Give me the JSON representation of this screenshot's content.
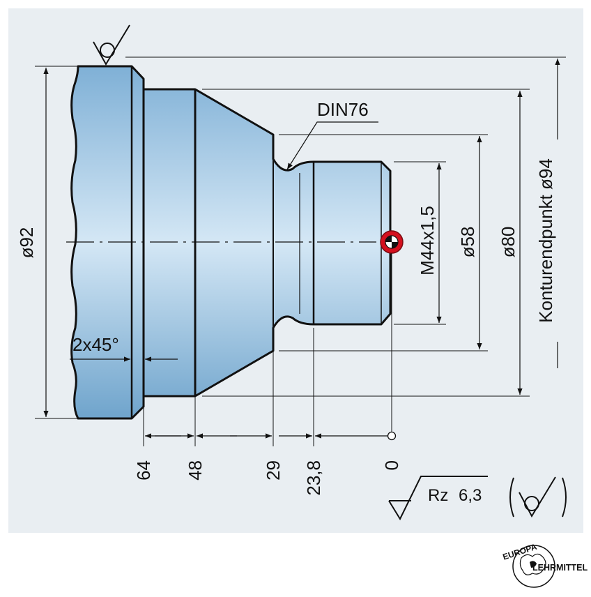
{
  "drawing": {
    "diameters": {
      "d92": "ø92",
      "m44": "M44x1,5",
      "d58": "ø58",
      "d80": "ø80",
      "d94": "Konturendpunkt ø94"
    },
    "chamfer": "2x45°",
    "undercut": "DIN76",
    "z_positions": [
      "64",
      "48",
      "29",
      "23,8",
      "0"
    ],
    "surface": {
      "param": "Rz",
      "value": "6,3"
    }
  },
  "logo": {
    "top": "EUROPA",
    "right": "LEHRMITTEL"
  },
  "colors": {
    "background": "#e9eef2",
    "part_fill": "#a8cde8",
    "contour_point": "#d4101e"
  }
}
